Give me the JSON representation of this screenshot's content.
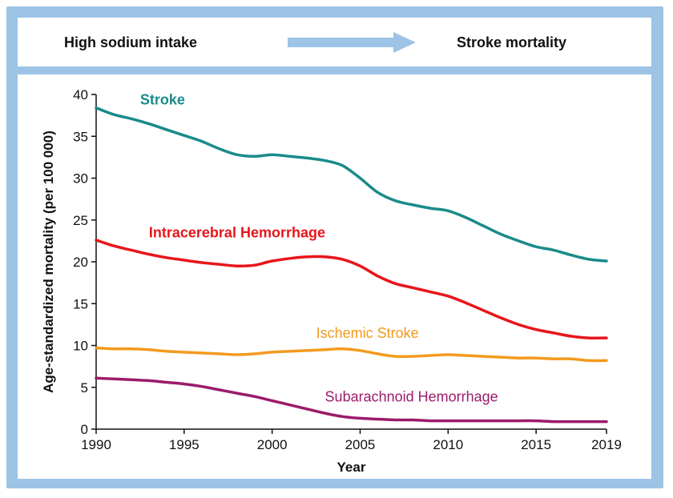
{
  "header": {
    "left_label": "High sodium intake",
    "right_label": "Stroke mortality",
    "arrow_color": "#9dc3e6"
  },
  "chart_data": {
    "type": "line",
    "title": "",
    "xlabel": "Year",
    "ylabel": "Age-standardized mortality (per 100 000)",
    "xlim": [
      1990,
      2019
    ],
    "ylim": [
      0,
      40
    ],
    "x_ticks": [
      1990,
      1995,
      2000,
      2005,
      2010,
      2015,
      2019
    ],
    "y_ticks": [
      0,
      5,
      10,
      15,
      20,
      25,
      30,
      35,
      40
    ],
    "grid": false,
    "legend": "inline labels",
    "series": [
      {
        "name": "Stroke",
        "color": "#1a8a8a",
        "x": [
          1990,
          1991,
          1992,
          1993,
          1994,
          1995,
          1996,
          1997,
          1998,
          1999,
          2000,
          2001,
          2002,
          2003,
          2004,
          2005,
          2006,
          2007,
          2008,
          2009,
          2010,
          2011,
          2012,
          2013,
          2014,
          2015,
          2016,
          2017,
          2018,
          2019
        ],
        "values": [
          38.4,
          37.6,
          37.1,
          36.5,
          35.8,
          35.1,
          34.4,
          33.5,
          32.8,
          32.6,
          32.8,
          32.6,
          32.4,
          32.1,
          31.5,
          30.0,
          28.3,
          27.3,
          26.8,
          26.4,
          26.1,
          25.3,
          24.3,
          23.3,
          22.5,
          21.8,
          21.4,
          20.8,
          20.3,
          20.1
        ]
      },
      {
        "name": "Intracerebral Hemorrhage",
        "color": "#e8151b",
        "x": [
          1990,
          1991,
          1992,
          1993,
          1994,
          1995,
          1996,
          1997,
          1998,
          1999,
          2000,
          2001,
          2002,
          2003,
          2004,
          2005,
          2006,
          2007,
          2008,
          2009,
          2010,
          2011,
          2012,
          2013,
          2014,
          2015,
          2016,
          2017,
          2018,
          2019
        ],
        "values": [
          22.6,
          21.9,
          21.4,
          20.9,
          20.5,
          20.2,
          19.9,
          19.7,
          19.5,
          19.6,
          20.1,
          20.4,
          20.6,
          20.6,
          20.3,
          19.5,
          18.3,
          17.4,
          16.9,
          16.4,
          15.9,
          15.1,
          14.2,
          13.3,
          12.5,
          11.9,
          11.5,
          11.1,
          10.9,
          10.9
        ]
      },
      {
        "name": "Ischemic Stroke",
        "color": "#f39a1f",
        "x": [
          1990,
          1991,
          1992,
          1993,
          1994,
          1995,
          1996,
          1997,
          1998,
          1999,
          2000,
          2001,
          2002,
          2003,
          2004,
          2005,
          2006,
          2007,
          2008,
          2009,
          2010,
          2011,
          2012,
          2013,
          2014,
          2015,
          2016,
          2017,
          2018,
          2019
        ],
        "values": [
          9.7,
          9.6,
          9.6,
          9.5,
          9.3,
          9.2,
          9.1,
          9.0,
          8.9,
          9.0,
          9.2,
          9.3,
          9.4,
          9.5,
          9.6,
          9.4,
          9.0,
          8.7,
          8.7,
          8.8,
          8.9,
          8.8,
          8.7,
          8.6,
          8.5,
          8.5,
          8.4,
          8.4,
          8.2,
          8.2
        ]
      },
      {
        "name": "Subarachnoid Hemorrhage",
        "color": "#9b1b6b",
        "x": [
          1990,
          1991,
          1992,
          1993,
          1994,
          1995,
          1996,
          1997,
          1998,
          1999,
          2000,
          2001,
          2002,
          2003,
          2004,
          2005,
          2006,
          2007,
          2008,
          2009,
          2010,
          2011,
          2012,
          2013,
          2014,
          2015,
          2016,
          2017,
          2018,
          2019
        ],
        "values": [
          6.1,
          6.0,
          5.9,
          5.8,
          5.6,
          5.4,
          5.1,
          4.7,
          4.3,
          3.9,
          3.4,
          2.9,
          2.4,
          1.9,
          1.5,
          1.3,
          1.2,
          1.1,
          1.1,
          1.0,
          1.0,
          1.0,
          1.0,
          1.0,
          1.0,
          1.0,
          0.9,
          0.9,
          0.9,
          0.9
        ]
      }
    ]
  }
}
